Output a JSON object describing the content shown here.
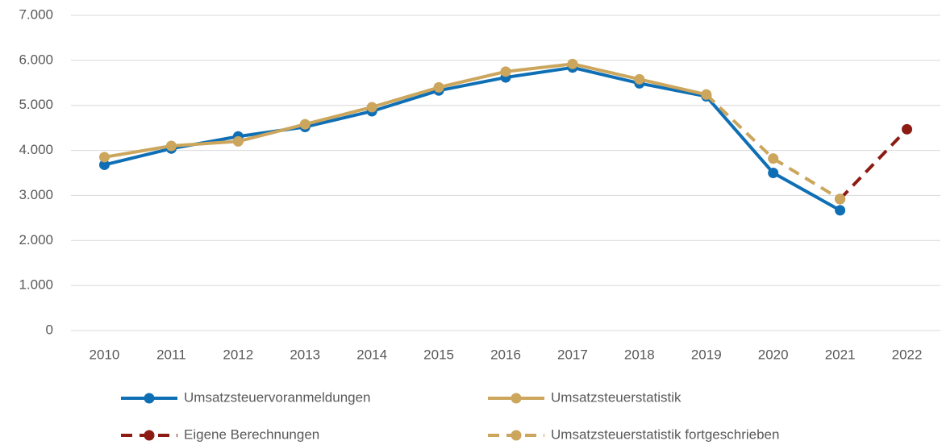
{
  "chart_data": {
    "type": "line",
    "categories": [
      "2010",
      "2011",
      "2012",
      "2013",
      "2014",
      "2015",
      "2016",
      "2017",
      "2018",
      "2019",
      "2020",
      "2021",
      "2022"
    ],
    "series": [
      {
        "name": "Umsatzsteuervoranmeldungen",
        "color": "#0f6fb5",
        "dashed": false,
        "values": [
          3680,
          4040,
          4310,
          4520,
          4870,
          5330,
          5620,
          5840,
          5490,
          5200,
          3500,
          2670,
          null
        ]
      },
      {
        "name": "Umsatzsteuerstatistik",
        "color": "#cba65c",
        "dashed": false,
        "values": [
          3850,
          4100,
          4200,
          4580,
          4960,
          5400,
          5750,
          5920,
          5580,
          5240,
          null,
          null,
          null
        ]
      },
      {
        "name": "Eigene Berechnungen",
        "color": "#8c1c13",
        "dashed": true,
        "values": [
          null,
          null,
          null,
          null,
          null,
          null,
          null,
          null,
          null,
          null,
          null,
          2920,
          4470
        ]
      },
      {
        "name": "Umsatzsteuerstatistik fortgeschrieben",
        "color": "#cba65c",
        "dashed": true,
        "values": [
          null,
          null,
          null,
          null,
          null,
          null,
          null,
          null,
          null,
          5240,
          3820,
          2920,
          null
        ]
      }
    ],
    "ylim": [
      0,
      7000
    ],
    "yticks": [
      0,
      {
        "value": 1000,
        "label": "1.000"
      },
      {
        "value": 2000,
        "label": "2.000"
      },
      {
        "value": 3000,
        "label": "3.000"
      },
      {
        "value": 4000,
        "label": "4.000"
      },
      {
        "value": 5000,
        "label": "5.000"
      },
      {
        "value": 6000,
        "label": "6.000"
      },
      {
        "value": 7000,
        "label": "7.000"
      }
    ],
    "grid": true,
    "legend": "bottom"
  }
}
